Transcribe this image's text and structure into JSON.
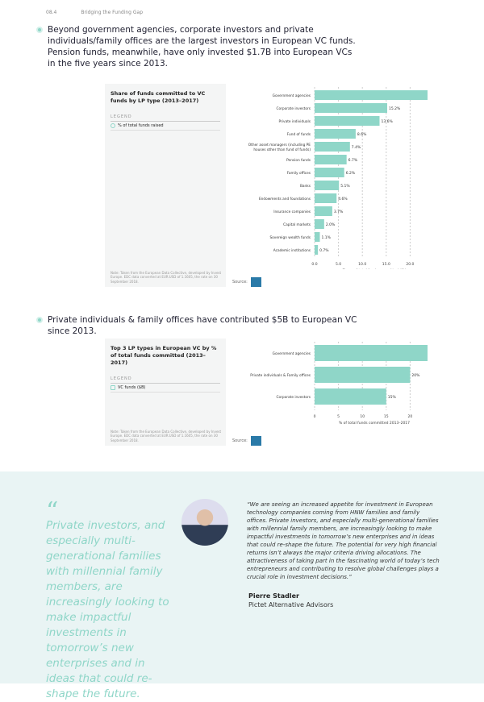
{
  "header": {
    "section": "08.4",
    "title": "Bridging the Funding Gap"
  },
  "bullet1": "Beyond government agencies, corporate investors and private individuals/family offices are the largest investors in European VC funds. Pension funds, meanwhile, have only invested $1.7B into European VCs in the five years since 2013.",
  "bullet2": "Private individuals & family offices have contributed $5B to European VC since 2013.",
  "panel1": {
    "title": "Share of funds committed to VC funds by LP type (2013–2017)",
    "legend_label": "LEGEND",
    "legend_item": "% of total funds raised",
    "note": "Note: Taken from the European Data Collective, developed by Invest Europe. EDC data converted at EUR:USD of 1.1605, the rate on 30 September 2018.",
    "source": "Source:"
  },
  "panel2": {
    "title": "Top 3 LP types in European VC by % of total funds committed (2013–2017)",
    "legend_label": "LEGEND",
    "legend_item": "VC funds ($B)",
    "note": "Note: Taken from the European Data Collective, developed by Invest Europe. EDC data converted at EUR:USD of 1.1605, the rate on 30 September 2018.",
    "source": "Source:"
  },
  "chart_data": [
    {
      "type": "bar",
      "orientation": "horizontal",
      "title": "Share of funds committed to VC funds by LP type (2013–2017)",
      "xlabel": "Share of total funds committed (%)",
      "xlim": [
        0,
        25
      ],
      "xticks": [
        "0.0",
        "5.0",
        "10.0",
        "15.0",
        "20.0",
        "25.0"
      ],
      "color": "#8fd6c8",
      "categories": [
        "Government agencies",
        "Corporate investors",
        "Private individuals",
        "Fund of funds",
        "Other asset managers (including PE houses other than fund of funds)",
        "Pension funds",
        "Family offices",
        "Banks",
        "Endowments and foundations",
        "Insurance companies",
        "Capital markets",
        "Sovereign wealth funds",
        "Academic institutions"
      ],
      "values": [
        25.2,
        15.2,
        13.6,
        8.6,
        7.4,
        6.7,
        6.2,
        5.1,
        4.6,
        3.7,
        2.0,
        1.1,
        0.7
      ],
      "labels": [
        "25.2%",
        "15.2%",
        "13.6%",
        "8.6%",
        "7.4%",
        "6.7%",
        "6.2%",
        "5.1%",
        "4.6%",
        "3.7%",
        "2.0%",
        "1.1%",
        "0.7%"
      ]
    },
    {
      "type": "bar",
      "orientation": "horizontal",
      "title": "Top 3 LP types in European VC by % of total funds committed (2013–2017)",
      "xlabel": "% of total funds committed 2013–2017",
      "xlim": [
        0,
        25
      ],
      "xticks": [
        "0",
        "5",
        "10",
        "15",
        "20",
        "25"
      ],
      "color": "#8fd6c8",
      "categories": [
        "Government agencies",
        "Private individuals & Family offices",
        "Corporate investors"
      ],
      "values": [
        25,
        20,
        15
      ],
      "labels": [
        "25%",
        "20%",
        "15%"
      ]
    }
  ],
  "quote": {
    "mark": "“",
    "pull": "Private investors, and especially multi-generational families with millennial family members, are increasingly looking to make impactful investments in tomorrow’s new enterprises and in ideas that could re-shape the future.",
    "text": "“We are seeing an increased appetite for investment in European technology companies coming from HNW families and family offices. Private investors, and especially multi-generational families with millennial family members, are increasingly looking to make impactful investments in tomorrow’s new enterprises and in ideas that could re-shape the future. The potential for very high financial returns isn’t always the major criteria driving allocations. The attractiveness of taking part in the fascinating world of today’s tech entrepreneurs and contributing to resolve global challenges plays a crucial role in investment decisions.”",
    "name": "Pierre Stadler",
    "org": "Pictet Alternative Advisors"
  }
}
